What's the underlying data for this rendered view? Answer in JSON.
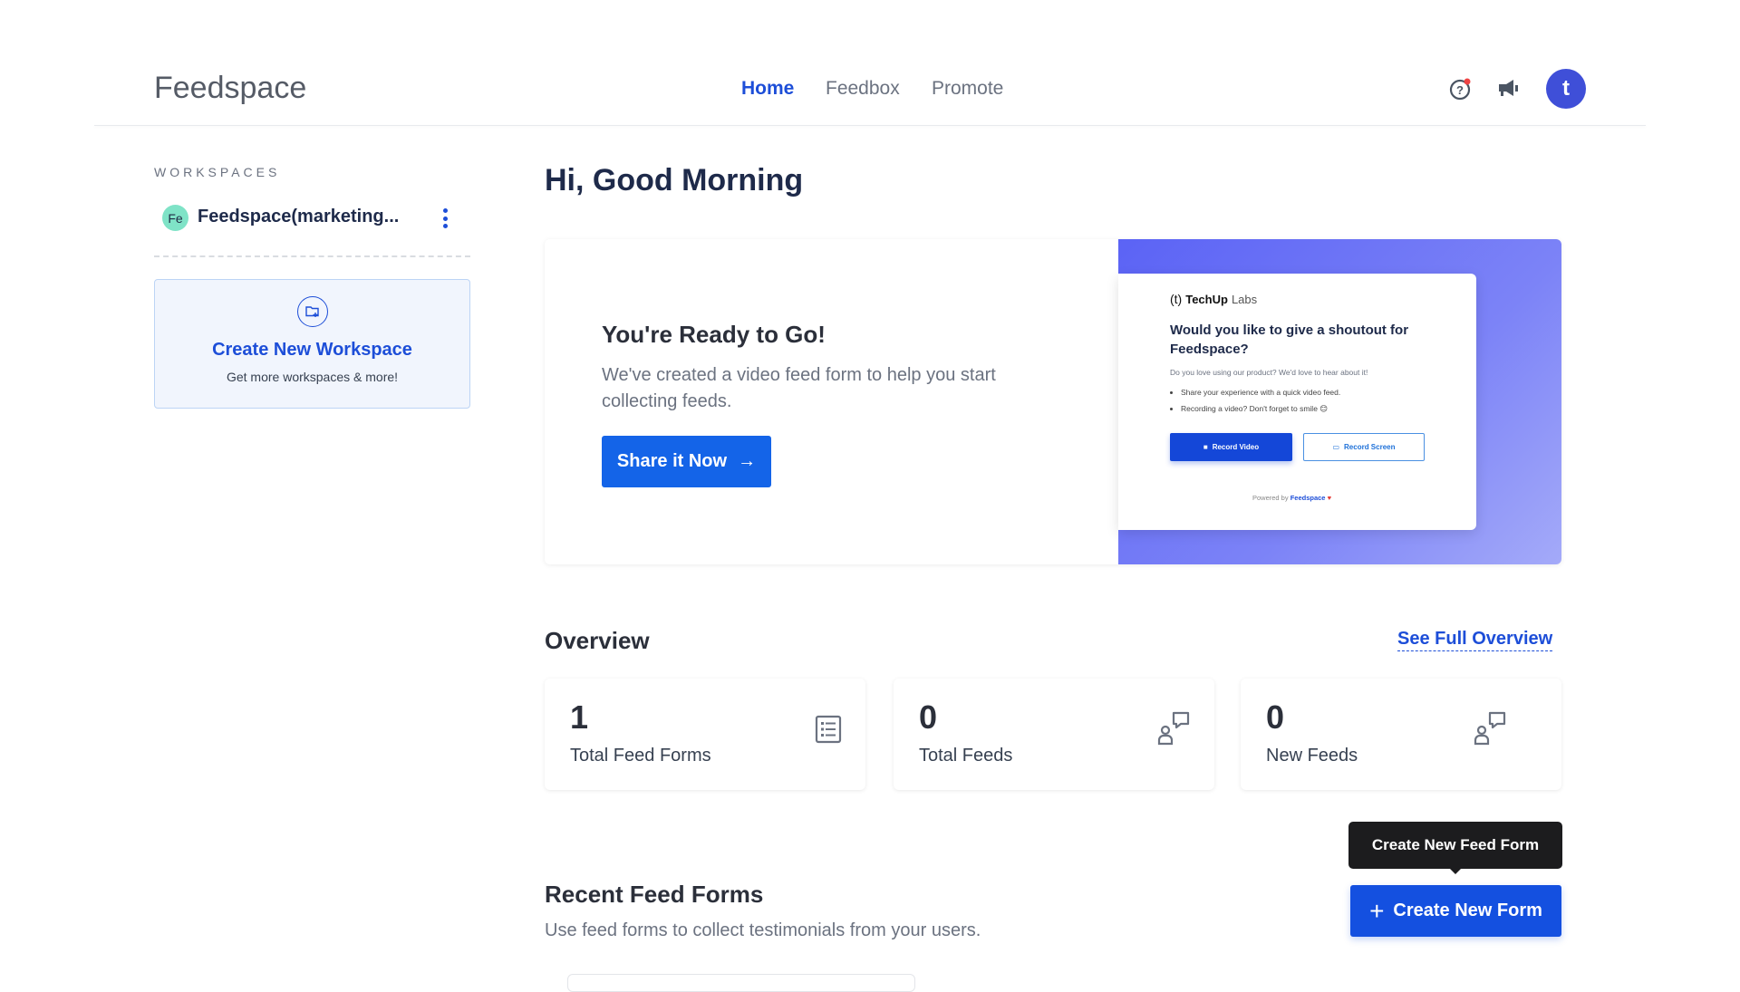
{
  "header": {
    "logo": "Feedspace",
    "nav": [
      {
        "label": "Home",
        "active": true
      },
      {
        "label": "Feedbox"
      },
      {
        "label": "Promote"
      }
    ],
    "icons": [
      "help-icon",
      "megaphone-icon"
    ],
    "avatar_initial": "t",
    "accent": "#1d4ed8"
  },
  "sidebar": {
    "section_label": "WORKSPACES",
    "workspace": {
      "initials": "Fe",
      "name": "Feedspace(marketing..."
    },
    "create": {
      "title": "Create New Workspace",
      "subtitle": "Get more workspaces & more!"
    }
  },
  "main": {
    "greeting": "Hi, Good Morning",
    "hero": {
      "title": "You're Ready to Go!",
      "description": "We've created a video feed form to help you start collecting feeds.",
      "button": "Share it Now",
      "preview": {
        "brand_mark": "(t)",
        "brand_bold": "TechUp",
        "brand_light": "Labs",
        "question": "Would you like to give a shoutout for Feedspace?",
        "subtext": "Do you love using our product? We'd love to hear about it!",
        "bullets": [
          "Share your experience with a quick video feed.",
          "Recording a video? Don't forget to smile 😊"
        ],
        "record_video": "Record Video",
        "record_screen": "Record Screen",
        "powered_by": "Powered by",
        "powered_brand": "Feedspace"
      }
    },
    "overview": {
      "title": "Overview",
      "link": "See Full Overview",
      "stats": [
        {
          "value": "1",
          "label": "Total Feed Forms",
          "icon": "list-icon"
        },
        {
          "value": "0",
          "label": "Total Feeds",
          "icon": "feedback-user-icon"
        },
        {
          "value": "0",
          "label": "New Feeds",
          "icon": "feedback-user-icon"
        }
      ]
    },
    "recent": {
      "title": "Recent Feed Forms",
      "subtitle": "Use feed forms to collect testimonials from your users.",
      "tooltip": "Create New Feed Form",
      "button": "Create New Form"
    }
  }
}
